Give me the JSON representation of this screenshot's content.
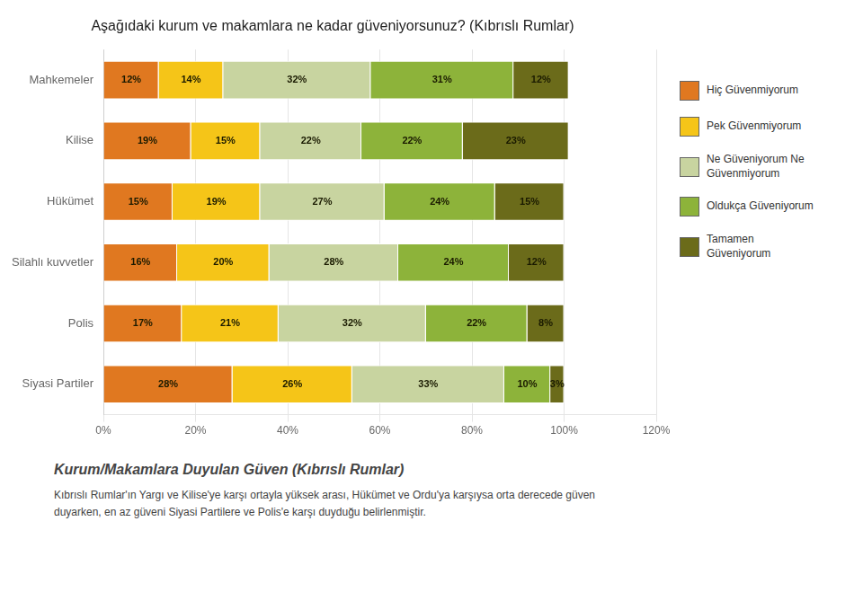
{
  "chart_data": {
    "type": "bar",
    "orientation": "horizontal",
    "stacked": true,
    "title": "Aşağıdaki kurum ve makamlara ne kadar güveniyorsunuz? (Kıbrıslı Rumlar)",
    "subtitle": "Kurum/Makamlara Duyulan Güven (Kıbrıslı Rumlar)",
    "annotations": [
      "Kıbrıslı Rumlar'ın Yargı ve Kilise'ye karşı ortayla yüksek arası, Hükümet ve Ordu'ya karşıysa orta derecede güven",
      "duyarken, en az güveni Siyasi Partilere ve Polis'e  karşı duyduğu belirlenmiştir."
    ],
    "categories": [
      "Mahkemeler",
      "Kilise",
      "Hükümet",
      "Silahlı kuvvetler",
      "Polis",
      "Siyasi Partiler"
    ],
    "series": [
      {
        "name": "Hiç Güvenmiyorum",
        "color": "#E07820",
        "values": [
          12,
          19,
          15,
          16,
          17,
          28
        ],
        "value_labels": [
          "12%",
          "19%",
          "15%",
          "16%",
          "17%",
          "28%"
        ]
      },
      {
        "name": "Pek Güvenmiyorum",
        "color": "#F5C518",
        "values": [
          14,
          15,
          19,
          20,
          21,
          26
        ],
        "value_labels": [
          "14%",
          "15%",
          "19%",
          "20%",
          "21%",
          "26%"
        ]
      },
      {
        "name": "Ne Güveniyorum Ne\nGüvenmiyorum",
        "color": "#C8D4A0",
        "values": [
          32,
          22,
          27,
          28,
          32,
          33
        ],
        "value_labels": [
          "32%",
          "22%",
          "27%",
          "28%",
          "32%",
          "33%"
        ]
      },
      {
        "name": "Oldukça Güveniyorum",
        "color": "#8DB33A",
        "values": [
          31,
          22,
          24,
          24,
          22,
          10
        ],
        "value_labels": [
          "31%",
          "22%",
          "24%",
          "24%",
          "22%",
          "10%"
        ]
      },
      {
        "name": "Tamamen\nGüveniyorum",
        "color": "#6B6B1A",
        "values": [
          12,
          23,
          15,
          12,
          8,
          3
        ],
        "value_labels": [
          "12%",
          "23%",
          "15%",
          "12%",
          "8%",
          "3%"
        ]
      }
    ],
    "xlim": [
      0,
      120
    ],
    "xticks": [
      {
        "value": 0,
        "label": "0%"
      },
      {
        "value": 20,
        "label": "20%"
      },
      {
        "value": 40,
        "label": "40%"
      },
      {
        "value": 60,
        "label": "60%"
      },
      {
        "value": 80,
        "label": "80%"
      },
      {
        "value": 100,
        "label": "100%"
      },
      {
        "value": 120,
        "label": "120%"
      }
    ],
    "grid": true,
    "legend": "right",
    "data_labels": true
  }
}
